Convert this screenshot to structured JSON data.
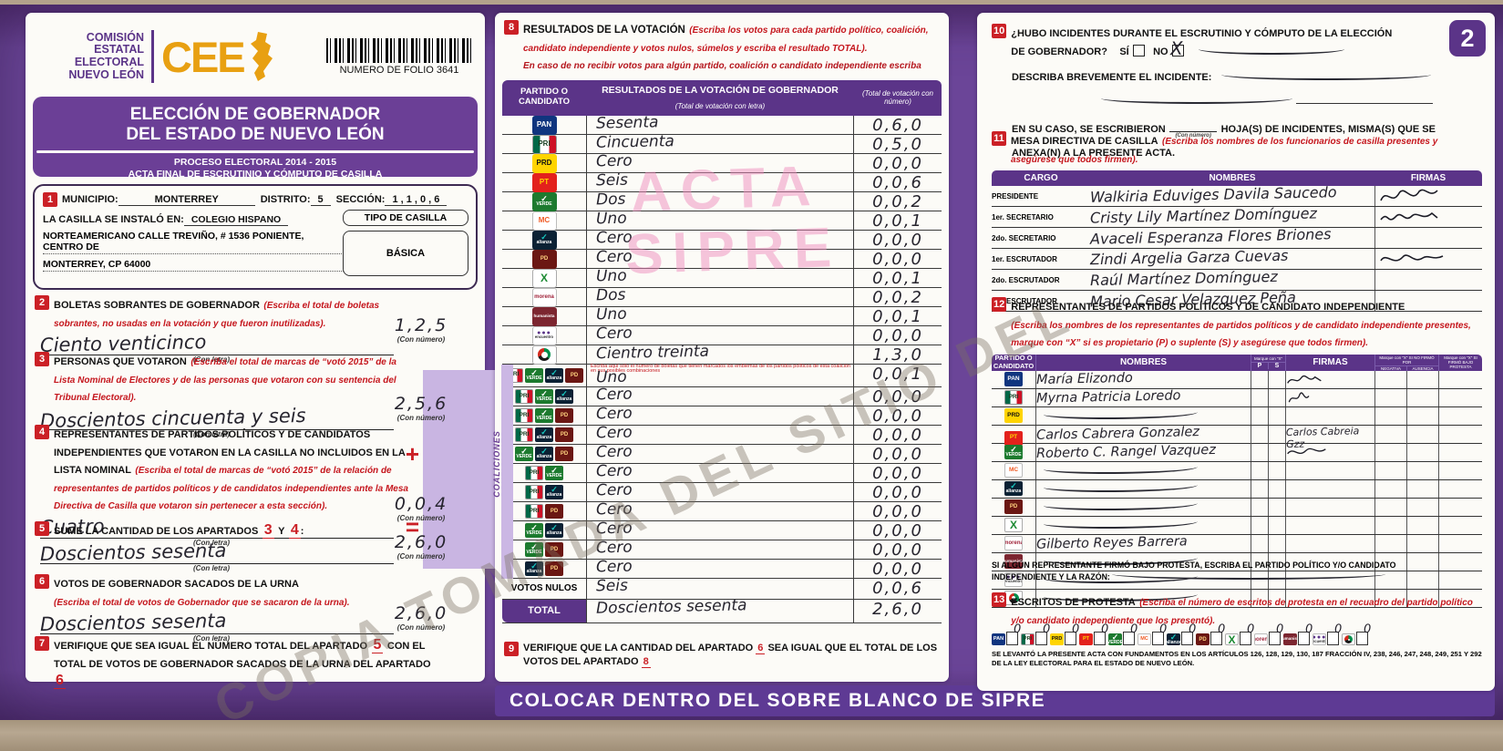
{
  "watermark": {
    "diagonal": "COPIA TOMADA DEL SITIO DEL",
    "stamp_line1": "ACTA",
    "stamp_line2": "SIPRE"
  },
  "footer": {
    "text": "COLOCAR DENTRO DEL SOBRE BLANCO DE SIPRE"
  },
  "colors": {
    "purple": "#6b4598",
    "dark_purple": "#5b3488",
    "red": "#cb2026",
    "lavender": "#c9b5e2",
    "cee_orange": "#e8a012",
    "stamp_pink": "#ef8fbe"
  },
  "header": {
    "org_line1": "COMISIÓN",
    "org_line2": "ESTATAL",
    "org_line3": "ELECTORAL",
    "org_line4": "NUEVO LEÓN",
    "cee": "CEE",
    "folio": "NUMERO DE FOLIO 3641",
    "title1": "ELECCIÓN DE GOBERNADOR",
    "title2": "DEL ESTADO DE NUEVO LEÓN",
    "process": "PROCESO ELECTORAL  2014 - 2015",
    "acta": "ACTA FINAL DE ESCRUTINIO Y CÓMPUTO DE CASILLA",
    "page_number": "2"
  },
  "b1": {
    "num": "1",
    "municipio_label": "MUNICIPIO:",
    "municipio": "MONTERREY",
    "distrito_label": "DISTRITO:",
    "distrito": "5",
    "seccion_label": "SECCIÓN:",
    "seccion": "1 , 1 , 0 , 6",
    "instalada_label": "LA CASILLA SE INSTALÓ EN:",
    "lugar1": "COLEGIO HISPANO",
    "lugar2": "NORTEAMERICANO CALLE TREVIÑO, # 1536 PONIENTE, CENTRO DE",
    "lugar3": "MONTERREY, CP 64000",
    "tipo_label": "TIPO DE CASILLA",
    "tipo": "BÁSICA"
  },
  "s2": {
    "num": "2",
    "title": "BOLETAS SOBRANTES DE GOBERNADOR",
    "instr": "(Escriba el total de boletas sobrantes, no usadas en la votación y que fueron inutilizadas).",
    "letra": "Ciento venticinco",
    "num_value": "1,2,5",
    "con_letra": "(Con letra)",
    "con_numero": "(Con número)"
  },
  "s3": {
    "num": "3",
    "title": "PERSONAS QUE VOTARON",
    "instr": "(Escriba el total de marcas de “votó 2015” de la Lista Nominal de Electores y de las personas que votaron con su sentencia del Tribunal Electoral).",
    "letra": "Doscientos cincuenta y seis",
    "num_value": "2,5,6",
    "con_letra": "(Con letra)",
    "con_numero": "(Con número)"
  },
  "s4": {
    "num": "4",
    "title": "REPRESENTANTES DE PARTIDOS POLÍTICOS Y DE CANDIDATOS INDEPENDIENTES QUE VOTARON EN LA CASILLA NO INCLUIDOS EN LA LISTA NOMINAL",
    "instr": "(Escriba el total de marcas de “votó 2015” de la relación de representantes de partidos políticos y de candidatos independientes ante la Mesa Directiva de Casilla que votaron sin pertenecer a esta sección).",
    "letra": "Cuatro",
    "num_value": "0,0,4",
    "operator": "+",
    "con_letra": "(Con letra)",
    "con_numero": "(Con número)"
  },
  "s5": {
    "num": "5",
    "t1": "SUME LA CANTIDAD DE LOS APARTADOS",
    "ref1": "3",
    "t2": "Y",
    "ref2": "4",
    "t3": ":",
    "letra": "Doscientos sesenta",
    "num_value": "2,6,0",
    "operator": "=",
    "con_letra": "(Con letra)",
    "con_numero": "(Con número)"
  },
  "s6": {
    "num": "6",
    "title": "VOTOS DE GOBERNADOR SACADOS DE LA URNA",
    "instr": "(Escriba el total de votos de Gobernador que se sacaron de la urna).",
    "letra": "Doscientos sesenta",
    "num_value": "2,6,0",
    "con_letra": "(Con letra)",
    "con_numero": "(Con número)"
  },
  "s7": {
    "num": "7",
    "p1": "VERIFIQUE QUE SEA IGUAL EL NÚMERO TOTAL DEL APARTADO",
    "ref1": "5",
    "p2": "CON EL TOTAL DE VOTOS DE GOBERNADOR SACADOS DE LA URNA DEL APARTADO",
    "ref2": "6"
  },
  "s8": {
    "num": "8",
    "title": "RESULTADOS DE LA VOTACIÓN",
    "instr": "(Escriba los votos para cada partido político, coalición, candidato independiente y votos nulos, súmelos y escriba el resultado TOTAL).",
    "note": "En caso de no recibir votos para algún partido, coalición o candidato independiente escriba ceros.",
    "col1a": "PARTIDO O",
    "col1b": "CANDIDATO",
    "col2": "RESULTADOS DE LA VOTACIÓN DE GOBERNADOR",
    "col2sub": "(Total de votación con letra)",
    "col3": "(Total de votación con número)",
    "coaliciones_label": "COALICIONES",
    "coalition_note": "Escriba aquí sólo el número de boletas que tienen marcados los emblemas de los partidos políticos de esta coalición en sus posibles combinaciones"
  },
  "results": {
    "rows": [
      {
        "parties": [
          "pan"
        ],
        "letra": "Sesenta",
        "num": "0,6,0"
      },
      {
        "parties": [
          "pri"
        ],
        "letra": "Cincuenta",
        "num": "0,5,0"
      },
      {
        "parties": [
          "prd"
        ],
        "letra": "Cero",
        "num": "0,0,0"
      },
      {
        "parties": [
          "pt"
        ],
        "letra": "Seis",
        "num": "0,0,6"
      },
      {
        "parties": [
          "verde"
        ],
        "letra": "Dos",
        "num": "0,0,2"
      },
      {
        "parties": [
          "mc"
        ],
        "letra": "Uno",
        "num": "0,0,1"
      },
      {
        "parties": [
          "alianza"
        ],
        "letra": "Cero",
        "num": "0,0,0"
      },
      {
        "parties": [
          "pd"
        ],
        "letra": "Cero",
        "num": "0,0,0"
      },
      {
        "parties": [
          "cruzada"
        ],
        "letra": "Uno",
        "num": "0,0,1"
      },
      {
        "parties": [
          "morena"
        ],
        "letra": "Dos",
        "num": "0,0,2"
      },
      {
        "parties": [
          "humanista"
        ],
        "letra": "Uno",
        "num": "0,0,1"
      },
      {
        "parties": [
          "encuentro"
        ],
        "letra": "Cero",
        "num": "0,0,0"
      },
      {
        "parties": [
          "indep"
        ],
        "letra": "Cientro treinta",
        "num": "1,3,0"
      },
      {
        "parties": [
          "pri",
          "verde",
          "alianza",
          "pd"
        ],
        "letra": "Uno",
        "num": "0,0,1",
        "coalition": true,
        "note": true
      },
      {
        "parties": [
          "pri",
          "verde",
          "alianza"
        ],
        "letra": "Cero",
        "num": "0,0,0",
        "coalition": true
      },
      {
        "parties": [
          "pri",
          "verde",
          "pd"
        ],
        "letra": "Cero",
        "num": "0,0,0",
        "coalition": true
      },
      {
        "parties": [
          "pri",
          "alianza",
          "pd"
        ],
        "letra": "Cero",
        "num": "0,0,0",
        "coalition": true
      },
      {
        "parties": [
          "verde",
          "alianza",
          "pd"
        ],
        "letra": "Cero",
        "num": "0,0,0",
        "coalition": true
      },
      {
        "parties": [
          "pri",
          "verde"
        ],
        "letra": "Cero",
        "num": "0,0,0",
        "coalition": true
      },
      {
        "parties": [
          "pri",
          "alianza"
        ],
        "letra": "Cero",
        "num": "0,0,0",
        "coalition": true
      },
      {
        "parties": [
          "pri",
          "pd"
        ],
        "letra": "Cero",
        "num": "0,0,0",
        "coalition": true
      },
      {
        "parties": [
          "verde",
          "alianza"
        ],
        "letra": "Cero",
        "num": "0,0,0",
        "coalition": true
      },
      {
        "parties": [
          "verde",
          "pd"
        ],
        "letra": "Cero",
        "num": "0,0,0",
        "coalition": true
      },
      {
        "parties": [
          "alianza",
          "pd"
        ],
        "letra": "Cero",
        "num": "0,0,0",
        "coalition": true
      },
      {
        "label": "VOTOS NULOS",
        "letra": "Seis",
        "num": "0,0,6"
      },
      {
        "label": "TOTAL",
        "letra": "Doscientos sesenta",
        "num": "2,6,0",
        "total": true
      }
    ]
  },
  "s9": {
    "num": "9",
    "p1": "VERIFIQUE QUE LA CANTIDAD DEL APARTADO",
    "ref1": "6",
    "p2": "SEA IGUAL QUE EL TOTAL DE LOS VOTOS DEL APARTADO",
    "ref2": "8"
  },
  "s10": {
    "num": "10",
    "title": "¿HUBO INCIDENTES DURANTE EL ESCRUTINIO Y CÓMPUTO DE LA ELECCIÓN DE GOBERNADOR?",
    "si": "SÍ",
    "no": "NO",
    "no_mark": "X",
    "describa": "DESCRIBA BREVEMENTE EL INCIDENTE:",
    "encaso1": "EN SU CASO, SE ESCRIBIERON",
    "con_numero": "(Con número)",
    "encaso2": "HOJA(S) DE INCIDENTES, MISMA(S) QUE SE",
    "encaso3": "ANEXA(N) A LA PRESENTE ACTA."
  },
  "s11": {
    "num": "11",
    "title": "MESA DIRECTIVA DE CASILLA",
    "instr": "(Escriba los nombres de los funcionarios de casilla presentes y asegúrese que todos firmen).",
    "col_cargo": "CARGO",
    "col_nombres": "NOMBRES",
    "col_firmas": "FIRMAS",
    "rows": [
      {
        "cargo": "PRESIDENTE",
        "name": "Walkiria Eduviges Davila Saucedo",
        "sig": 1
      },
      {
        "cargo": "1er. SECRETARIO",
        "name": "Cristy Lily Martínez Domínguez",
        "sig": 2
      },
      {
        "cargo": "2do. SECRETARIO",
        "name": "Avaceli Esperanza Flores Briones"
      },
      {
        "cargo": "1er. ESCRUTADOR",
        "name": "Zindi Argelia Garza Cuevas",
        "sig": 3
      },
      {
        "cargo": "2do. ESCRUTADOR",
        "name": "Raúl Martínez Domínguez"
      },
      {
        "cargo": "3er. ESCRUTADOR",
        "name": "Mario Cesar Velazquez Peña"
      }
    ]
  },
  "s12": {
    "num": "12",
    "title": "REPRESENTANTES DE PARTIDOS POLÍTICOS Y DE CANDIDATO INDEPENDIENTE",
    "instr": "(Escriba los nombres de los representantes de partidos políticos y de candidato independiente presentes, marque con “X” si es propietario (P) o suplente (S) y asegúrese que todos firmen).",
    "col_partido1": "PARTIDO O",
    "col_partido2": "CANDIDATO",
    "col_nombres": "NOMBRES",
    "marque": "Marque con “X”",
    "p": "P",
    "s": "S",
    "col_firmas": "FIRMAS",
    "marque_no": "Marque con “X” SI NO FIRMÓ POR",
    "negativa": "NEGATIVA",
    "ausencia": "AUSENCIA",
    "marque_protesta": "Marque con “X” SI FIRMÓ BAJO PROTESTA",
    "rows": [
      {
        "party": "pan",
        "name": "María Elizondo",
        "sig": 4
      },
      {
        "party": "pri",
        "name": "Myrna Patricia Loredo",
        "sig": 5
      },
      {
        "party": "prd",
        "line": true
      },
      {
        "party": "pt",
        "name": "Carlos Cabrera Gonzalez",
        "sigtext": "Carlos Cabreia Gzz"
      },
      {
        "party": "verde",
        "name": "Roberto C. Rangel Vazquez",
        "sig": 6
      },
      {
        "party": "mc",
        "line": true
      },
      {
        "party": "alianza",
        "line": true
      },
      {
        "party": "pd",
        "line": true
      },
      {
        "party": "cruzada",
        "line": true
      },
      {
        "party": "morena",
        "name": "Gilberto Reyes Barrera"
      },
      {
        "party": "humanista",
        "line": true
      },
      {
        "party": "encuentro",
        "line": true
      },
      {
        "party": "indep",
        "line": true
      }
    ],
    "protest_note1": "SI ALGÚN REPRESENTANTE FIRMÓ BAJO PROTESTA, ESCRIBA EL PARTIDO POLÍTICO Y/O CANDIDATO",
    "protest_note2": "INDEPENDIENTE Y LA RAZÓN:"
  },
  "s13": {
    "num": "13",
    "title": "ESCRITOS DE PROTESTA",
    "instr": "(Escriba el número de escritos de protesta en el recuadro del partido político y/o candidato independiente que los presentó).",
    "parties": [
      "pan",
      "pri",
      "prd",
      "pt",
      "verde",
      "mc",
      "alianza",
      "pd",
      "cruzada",
      "morena",
      "humanista",
      "encuentro",
      "indep"
    ],
    "values": [
      "0",
      "0",
      "0",
      "0",
      "0",
      "0",
      "0",
      "0",
      "0",
      "0",
      "0",
      "0",
      "0"
    ],
    "legal": "SE LEVANTÓ LA PRESENTE ACTA CON FUNDAMENTOS EN LOS ARTÍCULOS 126, 128, 129, 130, 187 FRACCIÓN IV, 238, 246, 247, 248, 249, 251 Y 292 DE LA LEY ELECTORAL PARA EL ESTADO DE NUEVO LEÓN."
  },
  "parties": {
    "pan": {
      "label": "PAN"
    },
    "pri": {
      "label": "PRI"
    },
    "prd": {
      "label": "PRD"
    },
    "pt": {
      "label": "PT"
    },
    "verde": {
      "label": "VERDE",
      "check": "✓"
    },
    "mc": {
      "label": "MC"
    },
    "alianza": {
      "label": "alianza",
      "check": "✓"
    },
    "pd": {
      "label": "PD"
    },
    "cruzada": {
      "label": "X"
    },
    "morena": {
      "label": "morena"
    },
    "humanista": {
      "label": "humanista"
    },
    "encuentro": {
      "label": "encuentro",
      "dots": "●●●"
    },
    "indep": {
      "label": "independiente"
    }
  }
}
